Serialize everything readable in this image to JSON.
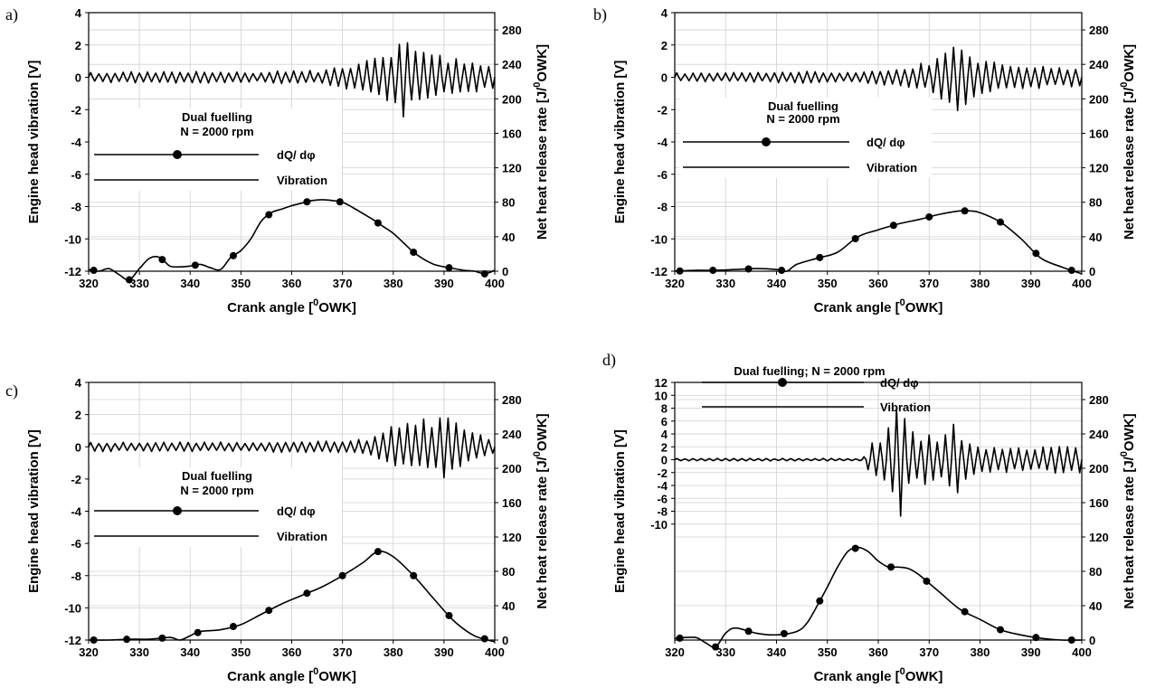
{
  "chart_data": [
    {
      "panel": "a)",
      "type": "line",
      "xlabel": "Crank angle [",
      "xlabel_sup": "0",
      "xlabel_unit": "OWK]",
      "ylabel": "Engine head vibration [V]",
      "y2label": "Net heat release rate [J/",
      "y2label_sup": "0",
      "y2label_unit": "OWK]",
      "xlim": [
        320,
        400
      ],
      "xticks": [
        320,
        330,
        340,
        350,
        360,
        370,
        380,
        390,
        400
      ],
      "ylim": [
        -12,
        4
      ],
      "yticks": [
        -12,
        -10,
        -8,
        -6,
        -4,
        -2,
        0,
        2,
        4
      ],
      "y2lim": [
        0,
        300
      ],
      "y2ticks": [
        0,
        40,
        80,
        120,
        160,
        200,
        240,
        280
      ],
      "grid": true,
      "legend": {
        "title_lines": [
          "Dual fuelling",
          "N = 2000 rpm"
        ],
        "entries": [
          "dQ/ dφ",
          "Vibration"
        ]
      },
      "series": [
        {
          "name": "dQ/ dφ",
          "axis": "right",
          "x": [
            320,
            322,
            324,
            326,
            328,
            330,
            332,
            334,
            336,
            338,
            340,
            342,
            344,
            346,
            348,
            350,
            352,
            354,
            356,
            358,
            360,
            362,
            364,
            366,
            368,
            370,
            372,
            374,
            376,
            378,
            380,
            382,
            384,
            386,
            388,
            390,
            392,
            394,
            396,
            398,
            400
          ],
          "values": [
            2,
            0,
            3,
            -4,
            -10,
            3,
            15,
            16,
            6,
            5,
            6,
            8,
            4,
            2,
            16,
            24,
            38,
            58,
            68,
            72,
            76,
            79,
            82,
            83,
            82,
            80,
            74,
            67,
            60,
            52,
            44,
            33,
            22,
            14,
            8,
            5,
            3,
            1,
            0,
            -3,
            1
          ],
          "marker_x": [
            321,
            328,
            334.5,
            341,
            348.5,
            355.5,
            363,
            369.5,
            377,
            384,
            391,
            398
          ]
        },
        {
          "name": "Vibration",
          "axis": "left",
          "baseline": 0,
          "envelope_x": [
            320,
            335,
            355,
            360,
            365,
            370,
            375,
            380,
            382,
            385,
            390,
            395,
            400
          ],
          "envelope_amp": [
            0.3,
            0.4,
            0.3,
            0.5,
            0.4,
            0.7,
            1.1,
            1.6,
            2.5,
            1.8,
            1.3,
            1.0,
            0.8
          ]
        }
      ]
    },
    {
      "panel": "b)",
      "type": "line",
      "xlabel": "Crank angle [",
      "xlabel_sup": "0",
      "xlabel_unit": "OWK]",
      "ylabel": "Engine head vibration [V]",
      "y2label": "Net heat release rate [J/",
      "y2label_sup": "0",
      "y2label_unit": "OWK]",
      "xlim": [
        320,
        400
      ],
      "xticks": [
        320,
        330,
        340,
        350,
        360,
        370,
        380,
        390,
        400
      ],
      "ylim": [
        -12,
        4
      ],
      "yticks": [
        -12,
        -10,
        -8,
        -6,
        -4,
        -2,
        0,
        2,
        4
      ],
      "y2lim": [
        0,
        300
      ],
      "y2ticks": [
        0,
        40,
        80,
        120,
        160,
        200,
        240,
        280
      ],
      "grid": true,
      "legend": {
        "title_lines": [
          "Dual fuelling",
          "N = 2000 rpm"
        ],
        "entries": [
          "dQ/ dφ",
          "Vibration"
        ]
      },
      "series": [
        {
          "name": "dQ/ dφ",
          "axis": "right",
          "x": [
            320,
            324,
            328,
            332,
            336,
            340,
            342,
            344,
            348,
            352,
            356,
            360,
            364,
            368,
            372,
            376,
            378,
            380,
            384,
            388,
            392,
            396,
            400
          ],
          "values": [
            0,
            1,
            1,
            2,
            3,
            2,
            0,
            8,
            15,
            22,
            40,
            48,
            55,
            60,
            66,
            70,
            70,
            68,
            57,
            38,
            15,
            5,
            -3
          ],
          "marker_x": [
            321,
            327.5,
            334.5,
            341,
            348.5,
            355.5,
            363,
            370,
            377,
            384,
            391,
            398
          ]
        },
        {
          "name": "Vibration",
          "axis": "left",
          "baseline": 0,
          "envelope_x": [
            320,
            335,
            345,
            355,
            365,
            370,
            373,
            375,
            377,
            380,
            385,
            390,
            400
          ],
          "envelope_amp": [
            0.3,
            0.3,
            0.4,
            0.3,
            0.6,
            1.0,
            1.6,
            2.3,
            1.8,
            1.2,
            0.9,
            0.7,
            0.6
          ]
        }
      ]
    },
    {
      "panel": "c)",
      "type": "line",
      "xlabel": "Crank angle [",
      "xlabel_sup": "0",
      "xlabel_unit": "OWK]",
      "ylabel": "Engine head vibration [V]",
      "y2label": "Net heat release rate [J/",
      "y2label_sup": "0",
      "y2label_unit": "OWK]",
      "xlim": [
        320,
        400
      ],
      "xticks": [
        320,
        330,
        340,
        350,
        360,
        370,
        380,
        390,
        400
      ],
      "ylim": [
        -12,
        4
      ],
      "yticks": [
        -12,
        -10,
        -8,
        -6,
        -4,
        -2,
        0,
        2,
        4
      ],
      "y2lim": [
        0,
        300
      ],
      "y2ticks": [
        0,
        40,
        80,
        120,
        160,
        200,
        240,
        280
      ],
      "grid": true,
      "legend": {
        "title_lines": [
          "Dual fuelling",
          "N = 2000 rpm"
        ],
        "entries": [
          "dQ/ dφ",
          "Vibration"
        ]
      },
      "series": [
        {
          "name": "dQ/ dφ",
          "axis": "right",
          "x": [
            320,
            324,
            328,
            332,
            336,
            338,
            340,
            342,
            346,
            350,
            354,
            358,
            362,
            366,
            370,
            374,
            377,
            380,
            384,
            388,
            392,
            396,
            400
          ],
          "values": [
            0,
            0,
            1,
            1,
            3,
            0,
            5,
            10,
            12,
            18,
            30,
            42,
            52,
            62,
            75,
            90,
            103,
            97,
            75,
            48,
            22,
            5,
            -2
          ],
          "marker_x": [
            321,
            327.5,
            334.5,
            341.5,
            348.5,
            355.5,
            363,
            370,
            377,
            384,
            391,
            398
          ]
        },
        {
          "name": "Vibration",
          "axis": "left",
          "baseline": 0,
          "envelope_x": [
            320,
            335,
            350,
            365,
            375,
            378,
            382,
            388,
            390,
            395,
            400
          ],
          "envelope_amp": [
            0.3,
            0.3,
            0.3,
            0.4,
            0.5,
            1.2,
            1.6,
            1.8,
            2.0,
            1.0,
            0.4
          ]
        }
      ]
    },
    {
      "panel": "d)",
      "type": "line",
      "xlabel": "Crank angle [",
      "xlabel_sup": "0",
      "xlabel_unit": "OWK]",
      "ylabel": "Engine head vibration [V]",
      "y2label": "Net heat release rate [J/",
      "y2label_sup": "0",
      "y2label_unit": "OWK]",
      "xlim": [
        320,
        400
      ],
      "xticks": [
        320,
        330,
        340,
        350,
        360,
        370,
        380,
        390,
        400
      ],
      "ylim": [
        -28,
        12
      ],
      "yticks": [
        -10,
        -8,
        -6,
        -4,
        -2,
        0,
        2,
        4,
        6,
        8,
        10,
        12
      ],
      "y2lim": [
        0,
        300
      ],
      "y2ticks": [
        0,
        40,
        80,
        120,
        160,
        200,
        240,
        280
      ],
      "grid": true,
      "legend": {
        "title_lines": [
          "Dual fuelling; N = 2000 rpm"
        ],
        "entries": [
          "dQ/ dφ",
          "Vibration"
        ]
      },
      "series": [
        {
          "name": "dQ/ dφ",
          "axis": "right",
          "x": [
            320,
            324,
            326,
            328,
            330,
            332,
            336,
            340,
            344,
            346,
            348,
            350,
            352,
            354,
            356,
            358,
            360,
            362,
            364,
            366,
            368,
            372,
            376,
            380,
            384,
            388,
            392,
            396,
            400
          ],
          "values": [
            2,
            3,
            -3,
            -8,
            8,
            14,
            8,
            6,
            10,
            20,
            40,
            62,
            85,
            103,
            108,
            103,
            92,
            85,
            85,
            83,
            76,
            56,
            36,
            24,
            12,
            6,
            2,
            0,
            0
          ],
          "marker_x": [
            321,
            328,
            334.5,
            341.5,
            348.5,
            355.5,
            362.5,
            369.5,
            377,
            384,
            391,
            398
          ]
        },
        {
          "name": "Vibration",
          "axis": "left",
          "baseline": 0,
          "envelope_x": [
            320,
            350,
            357,
            359,
            361,
            363,
            364,
            366,
            370,
            372,
            375,
            378,
            385,
            390,
            400
          ],
          "envelope_amp": [
            0.2,
            0.2,
            0.2,
            3.0,
            4.0,
            8.0,
            10.0,
            4.5,
            4.0,
            2.5,
            6.0,
            2.5,
            2.0,
            2.0,
            2.2
          ]
        }
      ]
    }
  ]
}
